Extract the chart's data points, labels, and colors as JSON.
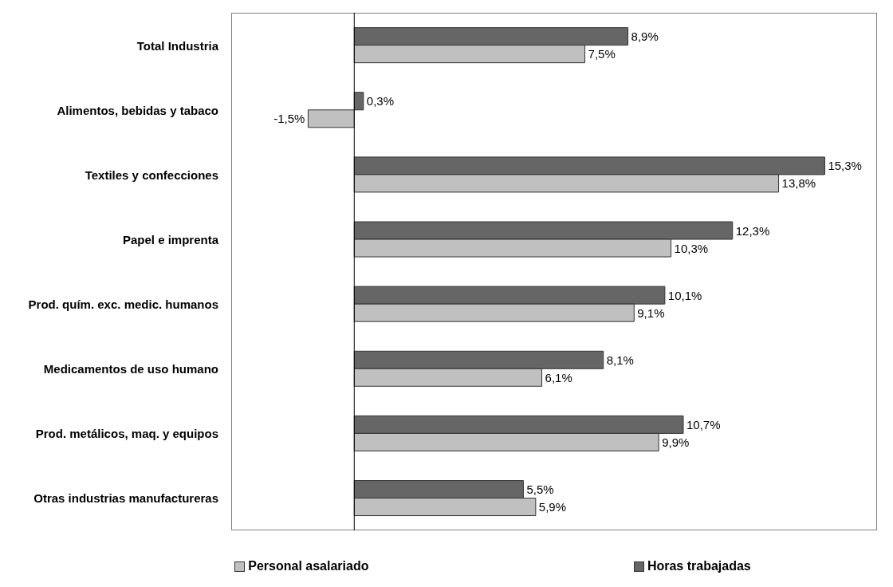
{
  "chart_data": {
    "type": "bar",
    "orientation": "horizontal",
    "tick_labels": false,
    "legend": "bottom",
    "xlim": [
      -4,
      17
    ],
    "categories": [
      "Total Industria",
      "Alimentos, bebidas y tabaco",
      "Textiles y confecciones",
      "Papel e imprenta",
      "Prod. quím. exc. medic. humanos",
      "Medicamentos de uso humano",
      "Prod. metálicos, maq. y equipos",
      "Otras industrias manufactureras"
    ],
    "series": [
      {
        "name": "Personal asalariado",
        "color": "#c0c0c0",
        "values": [
          7.5,
          -1.5,
          13.8,
          10.3,
          9.1,
          6.1,
          9.9,
          5.9
        ],
        "value_labels": [
          "7,5%",
          "-1,5%",
          "13,8%",
          "10,3%",
          "9,1%",
          "6,1%",
          "9,9%",
          "5,9%"
        ]
      },
      {
        "name": "Horas trabajadas",
        "color": "#666666",
        "values": [
          8.9,
          0.3,
          15.3,
          12.3,
          10.1,
          8.1,
          10.7,
          5.5
        ],
        "value_labels": [
          "8,9%",
          "0,3%",
          "15,3%",
          "12,3%",
          "10,1%",
          "8,1%",
          "10,7%",
          "5,5%"
        ]
      }
    ]
  }
}
